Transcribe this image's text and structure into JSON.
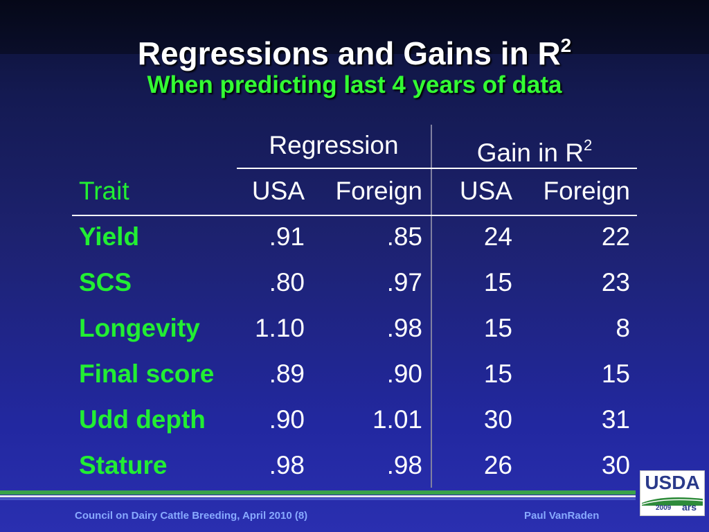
{
  "slide": {
    "title": "Regressions and Gains in R",
    "title_sup": "2",
    "subtitle": "When predicting last 4 years of data"
  },
  "table": {
    "group_headers": {
      "regression": "Regression",
      "gain": "Gain in R",
      "gain_sup": "2"
    },
    "col_headers": {
      "trait": "Trait",
      "reg_usa": "USA",
      "reg_foreign": "Foreign",
      "gain_usa": "USA",
      "gain_foreign": "Foreign"
    },
    "rows": [
      {
        "trait": "Yield",
        "reg_usa": ".91",
        "reg_foreign": ".85",
        "gain_usa": "24",
        "gain_foreign": "22"
      },
      {
        "trait": "SCS",
        "reg_usa": ".80",
        "reg_foreign": ".97",
        "gain_usa": "15",
        "gain_foreign": "23"
      },
      {
        "trait": "Longevity",
        "reg_usa": "1.10",
        "reg_foreign": ".98",
        "gain_usa": "15",
        "gain_foreign": "8"
      },
      {
        "trait": "Final score",
        "reg_usa": ".89",
        "reg_foreign": ".90",
        "gain_usa": "15",
        "gain_foreign": "15"
      },
      {
        "trait": "Udd depth",
        "reg_usa": ".90",
        "reg_foreign": "1.01",
        "gain_usa": "30",
        "gain_foreign": "31"
      },
      {
        "trait": "Stature",
        "reg_usa": ".98",
        "reg_foreign": ".98",
        "gain_usa": "26",
        "gain_foreign": "30"
      }
    ]
  },
  "footer": {
    "left": "Council on Dairy Cattle Breeding, April 2010 (8)",
    "right": "Paul VanRaden"
  },
  "logo": {
    "name": "USDA",
    "year": "2009",
    "ars": "ars",
    "icon": "usda-logo-icon",
    "colors": {
      "usda_blue": "#2a3a8a",
      "usda_green": "#2e8b3a"
    }
  },
  "colors": {
    "title": "#ffffff",
    "subtitle": "#33ff33",
    "trait_text": "#22ee33",
    "footer_text": "#88aaff"
  }
}
